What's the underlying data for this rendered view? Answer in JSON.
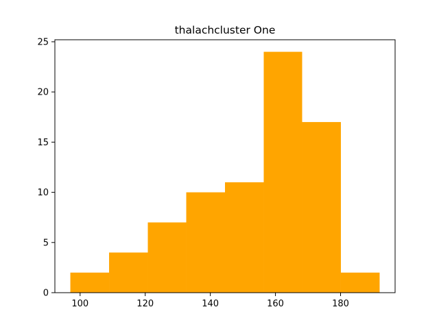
{
  "chart_data": {
    "type": "bar",
    "title": "thalachcluster One",
    "xlabel": "",
    "ylabel": "",
    "bins": [
      {
        "x0": 97.0,
        "x1": 108.9,
        "count": 2
      },
      {
        "x0": 108.9,
        "x1": 120.8,
        "count": 4
      },
      {
        "x0": 120.8,
        "x1": 132.6,
        "count": 7
      },
      {
        "x0": 132.6,
        "x1": 144.5,
        "count": 10
      },
      {
        "x0": 144.5,
        "x1": 156.4,
        "count": 11
      },
      {
        "x0": 156.4,
        "x1": 168.2,
        "count": 24
      },
      {
        "x0": 168.2,
        "x1": 180.1,
        "count": 17
      },
      {
        "x0": 180.1,
        "x1": 192.0,
        "count": 2
      }
    ],
    "xlim": [
      92.25,
      196.75
    ],
    "ylim": [
      0,
      25.2
    ],
    "xticks": [
      100,
      120,
      140,
      160,
      180
    ],
    "yticks": [
      0,
      5,
      10,
      15,
      20,
      25
    ],
    "bar_color": "#ffa500",
    "grid": false
  }
}
